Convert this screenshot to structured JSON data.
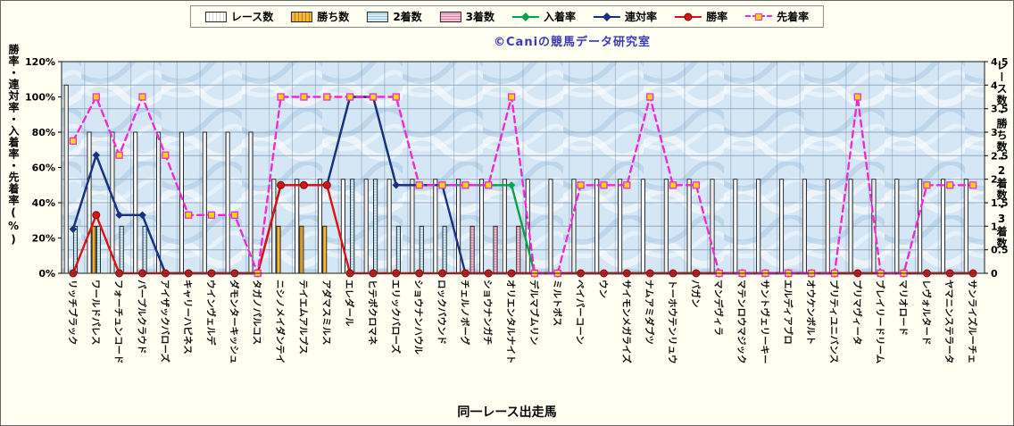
{
  "watermark": "©Caniの競馬データ研究室",
  "colors": {
    "page_background": "#fffff2",
    "plot_background": "#d5e7f5",
    "gridline": "#93aac2",
    "watermark_text": "#3a3ab8"
  },
  "chart_data": {
    "type": "combo bar+line, dual axis",
    "legend_position": "top",
    "x_title": "同一レース出走馬",
    "y_left_title": "勝率・連対率・入着率・先着率(%)",
    "y_right_title": "レース数・勝ち数・2着数・3着数",
    "y_left": {
      "min": 0,
      "max": 120,
      "step": 20,
      "suffix": "%"
    },
    "y_right": {
      "min": 0,
      "max": 4.5,
      "step": 0.5
    },
    "categories": [
      "リッチブラック",
      "ワールドパレス",
      "フォーチュンコード",
      "パープルクラウド",
      "アイザックバローズ",
      "キャリーハピネス",
      "ウインヴェルデ",
      "ダモンターキッシュ",
      "タガノパルコス",
      "ニシノメイダンテイ",
      "テイエムアルプス",
      "アダマスミルス",
      "エレダール",
      "ヒテポクロマネ",
      "エリックバローズ",
      "ショウナンハウル",
      "ロックバウンド",
      "チェルノボーグ",
      "ショウナンガチ",
      "オリエンタルナイト",
      "デルマブムリン",
      "ミルトボス",
      "ペイパーコーン",
      "ウン",
      "サイモンメガライズ",
      "ナムアミダブツ",
      "トーホウテンリュウ",
      "パガン",
      "マンデヴィラ",
      "マテンロウマジック",
      "サントヴェリーキー",
      "エルディアブロ",
      "オウケンボルト",
      "プリティユニバンス",
      "プリマヴィータ",
      "ブレイリードリーム",
      "マリオロード",
      "レヴォルタード",
      "ヤマニンステラータ",
      "サンライズルーチェ"
    ],
    "bar_series": [
      {
        "key": "races",
        "label": "レース数",
        "color": "#ffffff",
        "stripe": "#d8d8d8",
        "stripes": "v",
        "values": [
          4,
          3,
          3,
          3,
          3,
          3,
          3,
          3,
          3,
          2,
          2,
          2,
          2,
          2,
          2,
          2,
          2,
          2,
          2,
          2,
          2,
          2,
          2,
          2,
          2,
          2,
          2,
          2,
          2,
          2,
          2,
          2,
          2,
          2,
          2,
          2,
          2,
          2,
          2,
          2
        ]
      },
      {
        "key": "wins",
        "label": "勝ち数",
        "color": "#f3b73c",
        "stripe": "#b97f15",
        "stripes": "v",
        "values": [
          0,
          1,
          0,
          0,
          0,
          0,
          0,
          0,
          0,
          1,
          1,
          1,
          0,
          0,
          0,
          0,
          0,
          0,
          0,
          0,
          0,
          0,
          0,
          0,
          0,
          0,
          0,
          0,
          0,
          0,
          0,
          0,
          0,
          0,
          0,
          0,
          0,
          0,
          0,
          0
        ]
      },
      {
        "key": "seconds",
        "label": "2着数",
        "color": "#dbeef7",
        "stripe": "#8fc6dd",
        "stripes": "h",
        "values": [
          1,
          1,
          1,
          1,
          0,
          0,
          0,
          0,
          0,
          0,
          0,
          0,
          2,
          2,
          1,
          1,
          1,
          0,
          0,
          0,
          0,
          0,
          0,
          0,
          0,
          0,
          0,
          0,
          0,
          0,
          0,
          0,
          0,
          0,
          0,
          0,
          0,
          0,
          0,
          0
        ]
      },
      {
        "key": "thirds",
        "label": "3着数",
        "color": "#f6c3d9",
        "stripe": "#e07ba8",
        "stripes": "h",
        "values": [
          0,
          0,
          0,
          0,
          0,
          0,
          0,
          0,
          0,
          0,
          0,
          0,
          0,
          0,
          0,
          0,
          0,
          1,
          1,
          1,
          0,
          0,
          0,
          0,
          0,
          0,
          0,
          0,
          0,
          0,
          0,
          0,
          0,
          0,
          0,
          0,
          0,
          0,
          0,
          0
        ]
      }
    ],
    "line_series": [
      {
        "key": "place_rate",
        "label": "入着率",
        "color": "#00a44a",
        "marker": "diamond",
        "dashed": false,
        "values": [
          25,
          67,
          33,
          33,
          0,
          0,
          0,
          0,
          0,
          50,
          50,
          50,
          100,
          100,
          50,
          50,
          50,
          50,
          50,
          50,
          0,
          0,
          0,
          0,
          0,
          0,
          0,
          0,
          0,
          0,
          0,
          0,
          0,
          0,
          0,
          0,
          0,
          0,
          0,
          0
        ]
      },
      {
        "key": "rentai_rate",
        "label": "連対率",
        "color": "#1c2e85",
        "marker": "diamond",
        "dashed": false,
        "values": [
          25,
          67,
          33,
          33,
          0,
          0,
          0,
          0,
          0,
          50,
          50,
          50,
          100,
          100,
          50,
          50,
          50,
          0,
          0,
          0,
          0,
          0,
          0,
          0,
          0,
          0,
          0,
          0,
          0,
          0,
          0,
          0,
          0,
          0,
          0,
          0,
          0,
          0,
          0,
          0
        ]
      },
      {
        "key": "win_rate",
        "label": "勝率",
        "color": "#dd1111",
        "marker": "circle",
        "dashed": false,
        "values": [
          0,
          33,
          0,
          0,
          0,
          0,
          0,
          0,
          0,
          50,
          50,
          50,
          0,
          0,
          0,
          0,
          0,
          0,
          0,
          0,
          0,
          0,
          0,
          0,
          0,
          0,
          0,
          0,
          0,
          0,
          0,
          0,
          0,
          0,
          0,
          0,
          0,
          0,
          0,
          0
        ]
      },
      {
        "key": "prior_rate",
        "label": "先着率",
        "color": "#f02ad8",
        "marker": "square",
        "marker_fill": "#ffd700",
        "dashed": true,
        "values": [
          75,
          100,
          67,
          100,
          67,
          33,
          33,
          33,
          0,
          100,
          100,
          100,
          100,
          100,
          100,
          50,
          50,
          50,
          50,
          100,
          0,
          0,
          50,
          50,
          50,
          100,
          50,
          50,
          0,
          0,
          0,
          0,
          0,
          0,
          100,
          0,
          0,
          50,
          50,
          50
        ]
      }
    ]
  }
}
